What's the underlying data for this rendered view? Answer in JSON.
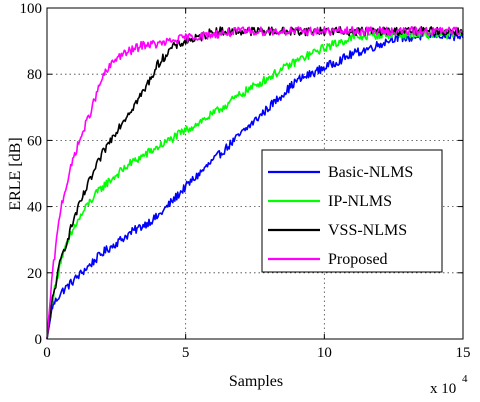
{
  "chart_data": {
    "type": "line",
    "xlabel": "Samples",
    "ylabel": "ERLE [dB]",
    "x_multiplier_base": "x 10",
    "x_multiplier_exp": "4",
    "xlim": [
      0,
      15
    ],
    "ylim": [
      0,
      100
    ],
    "xticks": [
      "0",
      "5",
      "10",
      "15"
    ],
    "yticks": [
      "0",
      "20",
      "40",
      "60",
      "80",
      "100"
    ],
    "grid": true,
    "legend_position": "right",
    "series": [
      {
        "name": "Basic-NLMS",
        "color": "#0000ff",
        "x": [
          0,
          0.2,
          0.5,
          1,
          1.5,
          2,
          3,
          4,
          5,
          6,
          7,
          8,
          9,
          10,
          11,
          12,
          12.5,
          13,
          14,
          15
        ],
        "y": [
          0,
          10,
          14,
          18,
          22,
          26,
          32,
          37,
          46,
          54,
          62,
          70,
          78,
          82,
          86,
          89,
          91,
          91,
          92,
          91
        ]
      },
      {
        "name": "IP-NLMS",
        "color": "#00ff00",
        "x": [
          0,
          0.2,
          0.5,
          1,
          1.5,
          2,
          3,
          4,
          5,
          6,
          7,
          8,
          9,
          10,
          11,
          12,
          13,
          14,
          15
        ],
        "y": [
          0,
          12,
          24,
          34,
          41,
          46,
          53,
          58,
          63,
          68,
          74,
          79,
          84,
          88,
          91,
          92,
          92,
          92,
          92
        ]
      },
      {
        "name": "VSS-NLMS",
        "color": "#000000",
        "x": [
          0,
          0.2,
          0.5,
          1,
          1.5,
          2,
          2.5,
          3,
          3.5,
          4,
          4.5,
          5,
          5.5,
          6,
          6.5,
          8,
          10,
          12,
          15
        ],
        "y": [
          0,
          12,
          24,
          37,
          47,
          56,
          63,
          69,
          75,
          83,
          88,
          90,
          91,
          93,
          93,
          93,
          93,
          93,
          93
        ]
      },
      {
        "name": "Proposed",
        "color": "#ff00ff",
        "x": [
          0,
          0.2,
          0.5,
          1,
          1.5,
          2,
          2.5,
          3,
          3.5,
          4,
          5,
          6,
          7,
          8,
          10,
          12,
          15
        ],
        "y": [
          0,
          20,
          40,
          56,
          67,
          79,
          85,
          87,
          89,
          89,
          91,
          92,
          93,
          93,
          93,
          93,
          93
        ]
      }
    ]
  }
}
